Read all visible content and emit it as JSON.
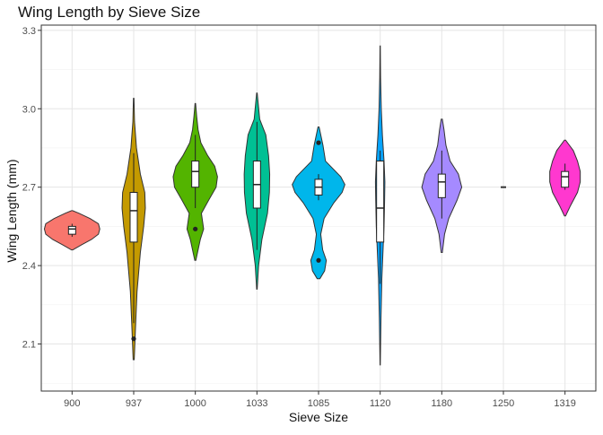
{
  "chart_data": {
    "type": "violin",
    "title": "Wing Length by Sieve Size",
    "xlabel": "Sieve Size",
    "ylabel": "Wing Length (mm)",
    "ylim": [
      1.92,
      3.32
    ],
    "yticks": [
      2.1,
      2.4,
      2.7,
      3.0,
      3.3
    ],
    "grid": true,
    "legend": "none",
    "categories": [
      "900",
      "937",
      "1000",
      "1033",
      "1085",
      "1120",
      "1180",
      "1250",
      "1319"
    ],
    "series": [
      {
        "category": "900",
        "color": "#F8766D",
        "density": [
          [
            2.46,
            0.02
          ],
          [
            2.48,
            0.35
          ],
          [
            2.5,
            0.7
          ],
          [
            2.52,
            0.95
          ],
          [
            2.54,
            1.0
          ],
          [
            2.56,
            0.95
          ],
          [
            2.58,
            0.65
          ],
          [
            2.6,
            0.25
          ],
          [
            2.61,
            0.02
          ]
        ],
        "box": {
          "min": 2.51,
          "q1": 2.52,
          "median": 2.54,
          "q3": 2.55,
          "max": 2.56
        },
        "outliers": []
      },
      {
        "category": "937",
        "color": "#C49A00",
        "density": [
          [
            2.04,
            0.02
          ],
          [
            2.15,
            0.06
          ],
          [
            2.3,
            0.12
          ],
          [
            2.45,
            0.24
          ],
          [
            2.55,
            0.36
          ],
          [
            2.62,
            0.42
          ],
          [
            2.68,
            0.4
          ],
          [
            2.75,
            0.24
          ],
          [
            2.85,
            0.1
          ],
          [
            2.95,
            0.03
          ],
          [
            3.04,
            0.01
          ]
        ],
        "box": {
          "min": 2.18,
          "q1": 2.49,
          "median": 2.61,
          "q3": 2.68,
          "max": 2.83
        },
        "outliers": [
          2.12
        ]
      },
      {
        "category": "1000",
        "color": "#53B400",
        "density": [
          [
            2.42,
            0.02
          ],
          [
            2.5,
            0.18
          ],
          [
            2.54,
            0.3
          ],
          [
            2.6,
            0.22
          ],
          [
            2.65,
            0.48
          ],
          [
            2.7,
            0.75
          ],
          [
            2.74,
            0.8
          ],
          [
            2.78,
            0.7
          ],
          [
            2.82,
            0.45
          ],
          [
            2.87,
            0.2
          ],
          [
            2.92,
            0.1
          ],
          [
            2.97,
            0.05
          ],
          [
            3.02,
            0.01
          ]
        ],
        "box": {
          "min": 2.62,
          "q1": 2.7,
          "median": 2.76,
          "q3": 2.8,
          "max": 2.9
        },
        "outliers": [
          2.54
        ]
      },
      {
        "category": "1033",
        "color": "#00C094",
        "density": [
          [
            2.31,
            0.01
          ],
          [
            2.4,
            0.06
          ],
          [
            2.5,
            0.18
          ],
          [
            2.6,
            0.38
          ],
          [
            2.68,
            0.45
          ],
          [
            2.75,
            0.46
          ],
          [
            2.82,
            0.42
          ],
          [
            2.9,
            0.32
          ],
          [
            2.96,
            0.1
          ],
          [
            3.06,
            0.01
          ]
        ],
        "box": {
          "min": 2.46,
          "q1": 2.62,
          "median": 2.71,
          "q3": 2.8,
          "max": 2.95
        },
        "outliers": []
      },
      {
        "category": "1085",
        "color": "#00B6EB",
        "density": [
          [
            2.35,
            0.05
          ],
          [
            2.38,
            0.22
          ],
          [
            2.42,
            0.28
          ],
          [
            2.46,
            0.15
          ],
          [
            2.52,
            0.08
          ],
          [
            2.58,
            0.2
          ],
          [
            2.64,
            0.55
          ],
          [
            2.68,
            0.85
          ],
          [
            2.71,
            0.95
          ],
          [
            2.74,
            0.8
          ],
          [
            2.8,
            0.25
          ],
          [
            2.86,
            0.16
          ],
          [
            2.89,
            0.1
          ],
          [
            2.93,
            0.02
          ]
        ],
        "box": {
          "min": 2.65,
          "q1": 2.67,
          "median": 2.7,
          "q3": 2.73,
          "max": 2.75
        },
        "outliers": [
          2.87,
          2.42
        ]
      },
      {
        "category": "1120",
        "color": "#06A4FF",
        "density": [
          [
            2.02,
            0.005
          ],
          [
            2.2,
            0.03
          ],
          [
            2.35,
            0.06
          ],
          [
            2.45,
            0.1
          ],
          [
            2.55,
            0.14
          ],
          [
            2.65,
            0.16
          ],
          [
            2.72,
            0.17
          ],
          [
            2.8,
            0.14
          ],
          [
            2.9,
            0.08
          ],
          [
            3.0,
            0.04
          ],
          [
            3.12,
            0.015
          ],
          [
            3.24,
            0.005
          ]
        ],
        "box": {
          "min": 2.33,
          "q1": 2.49,
          "median": 2.62,
          "q3": 2.8,
          "max": 2.84
        },
        "outliers": []
      },
      {
        "category": "1180",
        "color": "#A58AFF",
        "density": [
          [
            2.45,
            0.02
          ],
          [
            2.52,
            0.1
          ],
          [
            2.58,
            0.25
          ],
          [
            2.65,
            0.55
          ],
          [
            2.7,
            0.72
          ],
          [
            2.75,
            0.6
          ],
          [
            2.8,
            0.3
          ],
          [
            2.86,
            0.15
          ],
          [
            2.92,
            0.08
          ],
          [
            2.96,
            0.02
          ]
        ],
        "box": {
          "min": 2.58,
          "q1": 2.66,
          "median": 2.72,
          "q3": 2.75,
          "max": 2.84
        },
        "outliers": []
      },
      {
        "category": "1250",
        "color": "#FB61D7",
        "density": [],
        "box": {
          "min": 2.7,
          "q1": 2.7,
          "median": 2.7,
          "q3": 2.7,
          "max": 2.7
        },
        "outliers": []
      },
      {
        "category": "1319",
        "color": "#FF38CF",
        "density": [
          [
            2.59,
            0.02
          ],
          [
            2.63,
            0.2
          ],
          [
            2.68,
            0.45
          ],
          [
            2.72,
            0.55
          ],
          [
            2.76,
            0.55
          ],
          [
            2.8,
            0.45
          ],
          [
            2.84,
            0.3
          ],
          [
            2.88,
            0.02
          ]
        ],
        "box": {
          "min": 2.69,
          "q1": 2.7,
          "median": 2.74,
          "q3": 2.76,
          "max": 2.79
        },
        "outliers": []
      }
    ]
  }
}
